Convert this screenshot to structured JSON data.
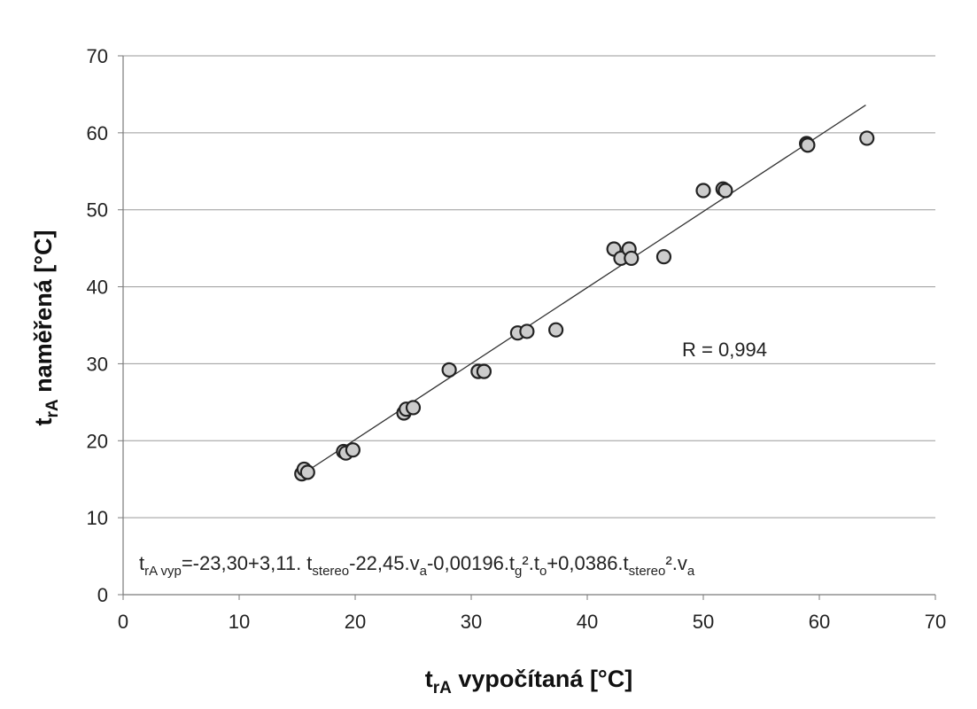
{
  "chart_data": {
    "type": "scatter",
    "x_ticks": [
      "0",
      "10",
      "20",
      "30",
      "40",
      "50",
      "60",
      "70"
    ],
    "y_ticks": [
      "0",
      "10",
      "20",
      "30",
      "40",
      "50",
      "60",
      "70"
    ],
    "xlim": [
      0,
      70
    ],
    "ylim": [
      0,
      70
    ],
    "grid": "horizontal",
    "legend": "none",
    "xlabel": {
      "main": "t",
      "sub": "rA",
      "rest": " vypočítaná [°C]"
    },
    "ylabel": {
      "main": "t",
      "sub": "rA",
      "rest": "  naměřená [°C]"
    },
    "correlation_label": "R = 0,994",
    "equation": [
      {
        "t": "t",
        "s": false
      },
      {
        "t": "rA vyp",
        "s": true
      },
      {
        "t": "=-23,30+3,11. t",
        "s": false
      },
      {
        "t": "stereo",
        "s": true
      },
      {
        "t": "-22,45.v",
        "s": false
      },
      {
        "t": "a",
        "s": true
      },
      {
        "t": "-0,00196.t",
        "s": false
      },
      {
        "t": "g",
        "s": true
      },
      {
        "t": "².t",
        "s": false
      },
      {
        "t": "o",
        "s": true
      },
      {
        "t": "+0,0386.t",
        "s": false
      },
      {
        "t": "stereo",
        "s": true
      },
      {
        "t": "².v",
        "s": false
      },
      {
        "t": "a",
        "s": true
      }
    ],
    "trendline": {
      "from": [
        15.5,
        15.7
      ],
      "to": [
        64.0,
        63.6
      ]
    },
    "colors": {
      "marker_fill": "#cccccc",
      "marker_stroke": "#222222",
      "grid": "#9a9a9a",
      "trendline": "#333333"
    },
    "points": [
      {
        "x": 15.4,
        "y": 15.7
      },
      {
        "x": 15.6,
        "y": 16.3
      },
      {
        "x": 15.9,
        "y": 15.9
      },
      {
        "x": 19.0,
        "y": 18.6
      },
      {
        "x": 19.2,
        "y": 18.4
      },
      {
        "x": 19.8,
        "y": 18.8
      },
      {
        "x": 24.2,
        "y": 23.6
      },
      {
        "x": 24.4,
        "y": 24.1
      },
      {
        "x": 25.0,
        "y": 24.3
      },
      {
        "x": 28.1,
        "y": 29.2
      },
      {
        "x": 30.6,
        "y": 29.0
      },
      {
        "x": 31.1,
        "y": 29.0
      },
      {
        "x": 34.0,
        "y": 34.0
      },
      {
        "x": 34.8,
        "y": 34.2
      },
      {
        "x": 37.3,
        "y": 34.4
      },
      {
        "x": 42.3,
        "y": 44.9
      },
      {
        "x": 42.9,
        "y": 43.7
      },
      {
        "x": 43.6,
        "y": 44.9
      },
      {
        "x": 43.8,
        "y": 43.7
      },
      {
        "x": 46.6,
        "y": 43.9
      },
      {
        "x": 50.0,
        "y": 52.5
      },
      {
        "x": 51.7,
        "y": 52.7
      },
      {
        "x": 51.9,
        "y": 52.5
      },
      {
        "x": 58.9,
        "y": 58.6
      },
      {
        "x": 59.0,
        "y": 58.4
      },
      {
        "x": 64.1,
        "y": 59.3
      }
    ]
  }
}
